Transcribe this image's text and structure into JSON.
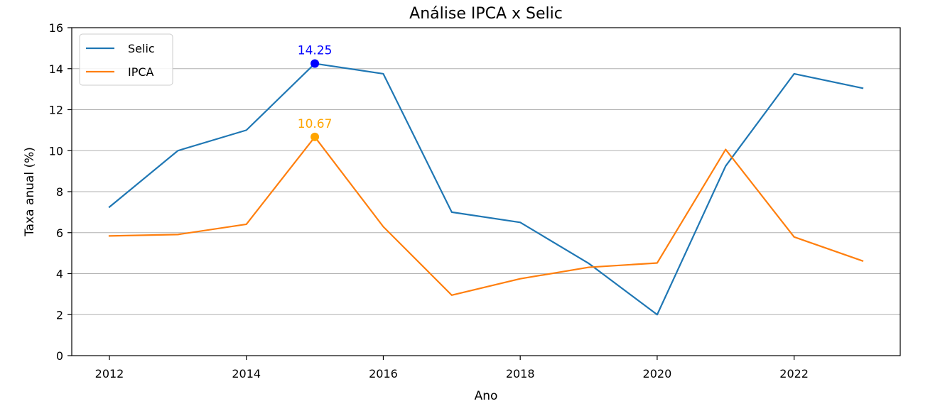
{
  "chart_data": {
    "type": "line",
    "title": "Análise IPCA x Selic",
    "xlabel": "Ano",
    "ylabel": "Taxa anual (%)",
    "x": [
      2012,
      2013,
      2014,
      2015,
      2016,
      2017,
      2018,
      2019,
      2020,
      2021,
      2022,
      2023
    ],
    "xlim": [
      2011.45,
      2023.55
    ],
    "ylim": [
      0,
      16
    ],
    "x_ticks": [
      2012,
      2014,
      2016,
      2018,
      2020,
      2022
    ],
    "x_tick_labels": [
      "2012",
      "2014",
      "2016",
      "2018",
      "2020",
      "2022"
    ],
    "y_ticks": [
      0,
      2,
      4,
      6,
      8,
      10,
      12,
      14,
      16
    ],
    "y_tick_labels": [
      "0",
      "2",
      "4",
      "6",
      "8",
      "10",
      "12",
      "14",
      "16"
    ],
    "grid": "horizontal",
    "legend_position": "top-left",
    "series": [
      {
        "name": "Selic",
        "color": "#1f77b4",
        "values": [
          7.25,
          10.0,
          11.0,
          14.25,
          13.75,
          7.0,
          6.5,
          4.5,
          2.0,
          9.25,
          13.75,
          13.05
        ],
        "peak": {
          "x": 2015,
          "y": 14.25,
          "label": "14.25",
          "color": "#0000ff"
        }
      },
      {
        "name": "IPCA",
        "color": "#ff7f0e",
        "values": [
          5.84,
          5.91,
          6.41,
          10.67,
          6.29,
          2.95,
          3.75,
          4.31,
          4.52,
          10.06,
          5.79,
          4.62
        ],
        "peak": {
          "x": 2015,
          "y": 10.67,
          "label": "10.67",
          "color": "#ffa500"
        }
      }
    ]
  }
}
